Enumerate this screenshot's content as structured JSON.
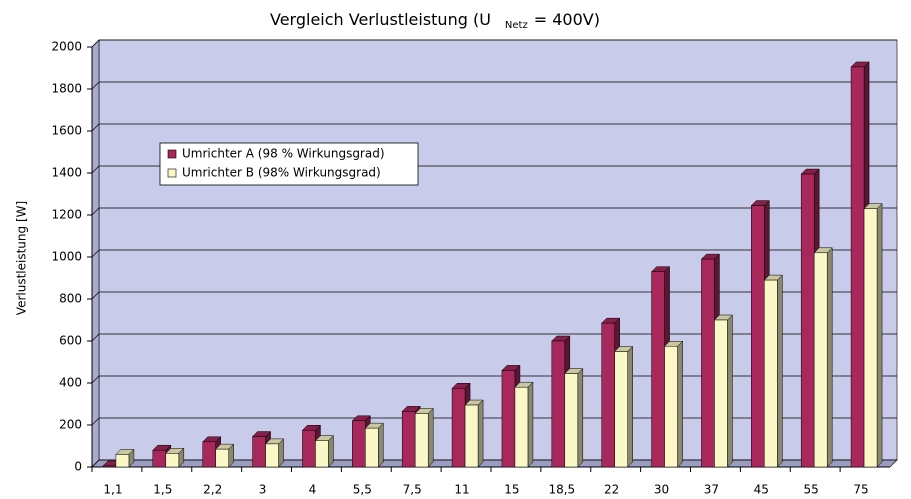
{
  "chart_data": {
    "type": "bar3d",
    "title": "Vergleich Verlustleistung (U",
    "title_subscript": "Netz",
    "title_suffix": "= 400V)",
    "y_label": "Verlustleistung [W]",
    "categories": [
      "1,1",
      "1,5",
      "2,2",
      "3",
      "4",
      "5,5",
      "7,5",
      "11",
      "15",
      "18,5",
      "22",
      "30",
      "37",
      "45",
      "55",
      "75"
    ],
    "series": [
      {
        "name": "Umrichter A (98 % Wirkungsgrad)",
        "color": "#a8285c",
        "values": [
          5,
          80,
          120,
          145,
          175,
          220,
          265,
          375,
          460,
          600,
          685,
          930,
          990,
          1245,
          1395,
          1905
        ]
      },
      {
        "name": "Umrichter B (98% Wirkungsgrad)",
        "color": "#fbf8c8",
        "values": [
          60,
          65,
          85,
          110,
          125,
          185,
          255,
          295,
          380,
          445,
          550,
          575,
          700,
          890,
          1020,
          1230
        ]
      }
    ],
    "ylim": [
      0,
      2000
    ],
    "yticks": [
      0,
      200,
      400,
      600,
      800,
      1000,
      1200,
      1400,
      1600,
      1800,
      2000
    ],
    "grid": true,
    "legend": "upper left",
    "background": "#c9cbea"
  }
}
